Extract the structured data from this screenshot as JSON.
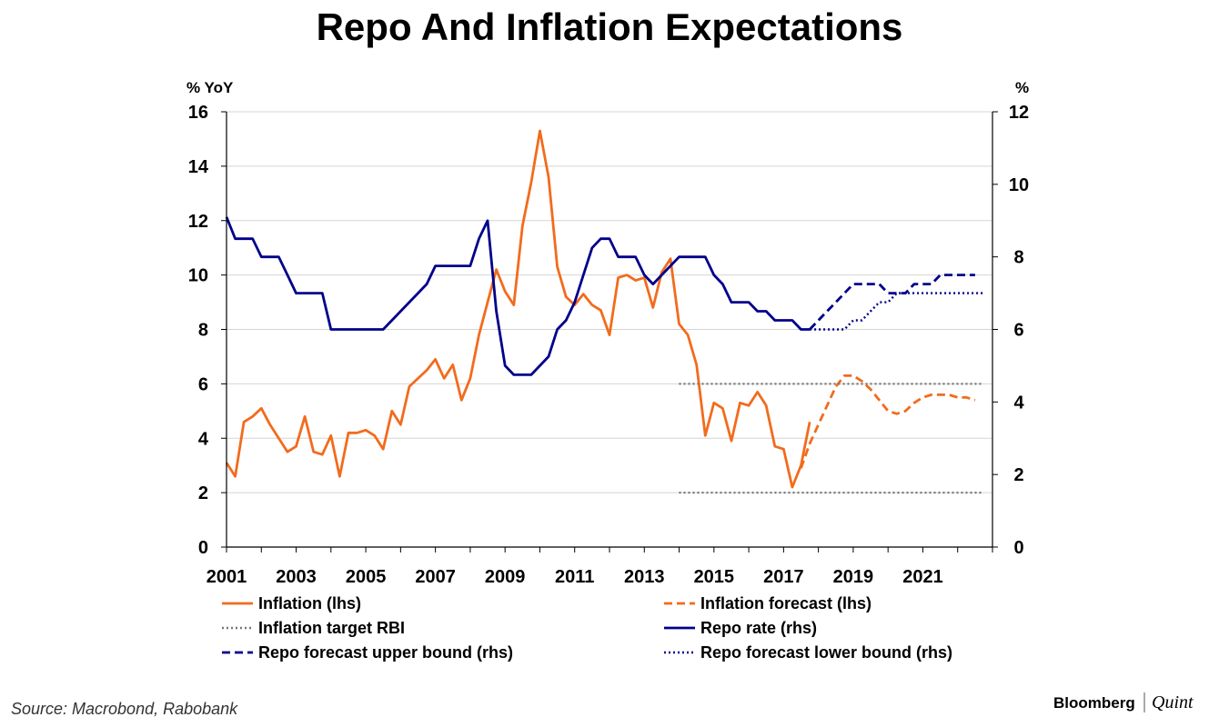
{
  "title": "Repo And Inflation Expectations",
  "source": "Source: Macrobond, Rabobank",
  "brand": {
    "name": "Bloomberg",
    "sub": "Quint"
  },
  "chart_data": {
    "type": "line",
    "title": "Repo And Inflation Expectations",
    "y_left": {
      "label": "% YoY",
      "range": [
        0,
        16
      ],
      "ticks": [
        0,
        2,
        4,
        6,
        8,
        10,
        12,
        14,
        16
      ]
    },
    "y_right": {
      "label": "%",
      "range": [
        0,
        12
      ],
      "ticks": [
        0,
        2,
        4,
        6,
        8,
        10,
        12
      ]
    },
    "x": {
      "range": [
        2001,
        2023
      ],
      "ticks": [
        2001,
        2003,
        2005,
        2007,
        2009,
        2011,
        2013,
        2015,
        2017,
        2019,
        2021
      ]
    },
    "grid": true,
    "legend_position": "bottom",
    "colors": {
      "inflation": "#f26b1d",
      "repo": "#00008b",
      "target": "#777777"
    },
    "series": [
      {
        "name": "Inflation (lhs)",
        "axis": "left",
        "style": "solid",
        "color": "#f26b1d",
        "points": [
          [
            2001.0,
            3.1
          ],
          [
            2001.25,
            2.6
          ],
          [
            2001.5,
            4.6
          ],
          [
            2001.75,
            4.8
          ],
          [
            2002.0,
            5.1
          ],
          [
            2002.25,
            4.5
          ],
          [
            2002.5,
            4.0
          ],
          [
            2002.75,
            3.5
          ],
          [
            2003.0,
            3.7
          ],
          [
            2003.25,
            4.8
          ],
          [
            2003.5,
            3.5
          ],
          [
            2003.75,
            3.4
          ],
          [
            2004.0,
            4.1
          ],
          [
            2004.25,
            2.6
          ],
          [
            2004.5,
            4.2
          ],
          [
            2004.75,
            4.2
          ],
          [
            2005.0,
            4.3
          ],
          [
            2005.25,
            4.1
          ],
          [
            2005.5,
            3.6
          ],
          [
            2005.75,
            5.0
          ],
          [
            2006.0,
            4.5
          ],
          [
            2006.25,
            5.9
          ],
          [
            2006.5,
            6.2
          ],
          [
            2006.75,
            6.5
          ],
          [
            2007.0,
            6.9
          ],
          [
            2007.25,
            6.2
          ],
          [
            2007.5,
            6.7
          ],
          [
            2007.75,
            5.4
          ],
          [
            2008.0,
            6.2
          ],
          [
            2008.25,
            7.8
          ],
          [
            2008.5,
            9.0
          ],
          [
            2008.75,
            10.2
          ],
          [
            2009.0,
            9.4
          ],
          [
            2009.25,
            8.9
          ],
          [
            2009.5,
            11.8
          ],
          [
            2009.75,
            13.4
          ],
          [
            2010.0,
            15.3
          ],
          [
            2010.25,
            13.6
          ],
          [
            2010.5,
            10.3
          ],
          [
            2010.75,
            9.2
          ],
          [
            2011.0,
            8.9
          ],
          [
            2011.25,
            9.3
          ],
          [
            2011.5,
            8.9
          ],
          [
            2011.75,
            8.7
          ],
          [
            2012.0,
            7.8
          ],
          [
            2012.25,
            9.9
          ],
          [
            2012.5,
            10.0
          ],
          [
            2012.75,
            9.8
          ],
          [
            2013.0,
            9.9
          ],
          [
            2013.25,
            8.8
          ],
          [
            2013.5,
            10.1
          ],
          [
            2013.75,
            10.6
          ],
          [
            2014.0,
            8.2
          ],
          [
            2014.25,
            7.8
          ],
          [
            2014.5,
            6.7
          ],
          [
            2014.75,
            4.1
          ],
          [
            2015.0,
            5.3
          ],
          [
            2015.25,
            5.1
          ],
          [
            2015.5,
            3.9
          ],
          [
            2015.75,
            5.3
          ],
          [
            2016.0,
            5.2
          ],
          [
            2016.25,
            5.7
          ],
          [
            2016.5,
            5.2
          ],
          [
            2016.75,
            3.7
          ],
          [
            2017.0,
            3.6
          ],
          [
            2017.25,
            2.2
          ],
          [
            2017.5,
            3.0
          ],
          [
            2017.75,
            4.6
          ]
        ]
      },
      {
        "name": "Inflation forecast (lhs)",
        "axis": "left",
        "style": "dashed",
        "color": "#f26b1d",
        "points": [
          [
            2017.5,
            2.9
          ],
          [
            2017.75,
            3.8
          ],
          [
            2018.0,
            4.5
          ],
          [
            2018.25,
            5.2
          ],
          [
            2018.5,
            5.9
          ],
          [
            2018.75,
            6.3
          ],
          [
            2019.0,
            6.3
          ],
          [
            2019.25,
            6.1
          ],
          [
            2019.5,
            5.8
          ],
          [
            2019.75,
            5.4
          ],
          [
            2020.0,
            5.0
          ],
          [
            2020.25,
            4.9
          ],
          [
            2020.5,
            5.0
          ],
          [
            2020.75,
            5.3
          ],
          [
            2021.0,
            5.5
          ],
          [
            2021.25,
            5.6
          ],
          [
            2021.5,
            5.6
          ],
          [
            2021.75,
            5.6
          ],
          [
            2022.0,
            5.5
          ],
          [
            2022.25,
            5.5
          ],
          [
            2022.5,
            5.4
          ]
        ]
      },
      {
        "name": "Inflation target RBI",
        "axis": "left",
        "style": "dotted",
        "color": "#777777",
        "lines": [
          {
            "points": [
              [
                2014.0,
                6.0
              ],
              [
                2022.75,
                6.0
              ]
            ]
          },
          {
            "points": [
              [
                2014.0,
                2.0
              ],
              [
                2022.75,
                2.0
              ]
            ]
          }
        ]
      },
      {
        "name": "Repo rate (rhs)",
        "axis": "right",
        "style": "solid",
        "color": "#00008b",
        "points": [
          [
            2001.0,
            9.1
          ],
          [
            2001.25,
            8.5
          ],
          [
            2001.75,
            8.5
          ],
          [
            2002.0,
            8.0
          ],
          [
            2002.5,
            8.0
          ],
          [
            2002.75,
            7.5
          ],
          [
            2003.0,
            7.0
          ],
          [
            2003.75,
            7.0
          ],
          [
            2004.0,
            6.0
          ],
          [
            2005.5,
            6.0
          ],
          [
            2006.0,
            6.5
          ],
          [
            2006.5,
            7.0
          ],
          [
            2006.75,
            7.25
          ],
          [
            2007.0,
            7.75
          ],
          [
            2007.75,
            7.75
          ],
          [
            2008.0,
            7.75
          ],
          [
            2008.25,
            8.5
          ],
          [
            2008.5,
            9.0
          ],
          [
            2008.75,
            6.5
          ],
          [
            2009.0,
            5.0
          ],
          [
            2009.25,
            4.75
          ],
          [
            2009.75,
            4.75
          ],
          [
            2010.0,
            5.0
          ],
          [
            2010.25,
            5.25
          ],
          [
            2010.5,
            6.0
          ],
          [
            2010.75,
            6.25
          ],
          [
            2011.0,
            6.75
          ],
          [
            2011.25,
            7.5
          ],
          [
            2011.5,
            8.25
          ],
          [
            2011.75,
            8.5
          ],
          [
            2012.0,
            8.5
          ],
          [
            2012.25,
            8.0
          ],
          [
            2012.75,
            8.0
          ],
          [
            2013.0,
            7.5
          ],
          [
            2013.25,
            7.25
          ],
          [
            2013.5,
            7.5
          ],
          [
            2013.75,
            7.75
          ],
          [
            2014.0,
            8.0
          ],
          [
            2014.75,
            8.0
          ],
          [
            2015.0,
            7.5
          ],
          [
            2015.25,
            7.25
          ],
          [
            2015.5,
            6.75
          ],
          [
            2016.0,
            6.75
          ],
          [
            2016.25,
            6.5
          ],
          [
            2016.5,
            6.5
          ],
          [
            2016.75,
            6.25
          ],
          [
            2017.25,
            6.25
          ],
          [
            2017.5,
            6.0
          ],
          [
            2017.75,
            6.0
          ]
        ]
      },
      {
        "name": "Repo forecast upper bound (rhs)",
        "axis": "right",
        "style": "dashed",
        "color": "#00008b",
        "points": [
          [
            2017.75,
            6.0
          ],
          [
            2018.0,
            6.25
          ],
          [
            2018.25,
            6.5
          ],
          [
            2018.5,
            6.75
          ],
          [
            2018.75,
            7.0
          ],
          [
            2019.0,
            7.25
          ],
          [
            2019.5,
            7.25
          ],
          [
            2019.75,
            7.25
          ],
          [
            2020.0,
            7.0
          ],
          [
            2020.5,
            7.0
          ],
          [
            2020.75,
            7.25
          ],
          [
            2021.25,
            7.25
          ],
          [
            2021.5,
            7.5
          ],
          [
            2022.5,
            7.5
          ]
        ]
      },
      {
        "name": "Repo forecast lower bound (rhs)",
        "axis": "right",
        "style": "dotted",
        "color": "#00008b",
        "points": [
          [
            2017.75,
            6.0
          ],
          [
            2018.75,
            6.0
          ],
          [
            2019.0,
            6.25
          ],
          [
            2019.25,
            6.25
          ],
          [
            2019.5,
            6.5
          ],
          [
            2019.75,
            6.75
          ],
          [
            2020.0,
            6.75
          ],
          [
            2020.25,
            7.0
          ],
          [
            2022.75,
            7.0
          ]
        ]
      }
    ],
    "legend": [
      {
        "label": "Inflation (lhs)",
        "color": "#f26b1d",
        "style": "solid"
      },
      {
        "label": "Inflation forecast (lhs)",
        "color": "#f26b1d",
        "style": "dashed"
      },
      {
        "label": "Inflation target RBI",
        "color": "#777777",
        "style": "dotted"
      },
      {
        "label": "Repo rate (rhs)",
        "color": "#00008b",
        "style": "solid"
      },
      {
        "label": "Repo forecast upper bound (rhs)",
        "color": "#00008b",
        "style": "dashed"
      },
      {
        "label": "Repo forecast lower bound (rhs)",
        "color": "#00008b",
        "style": "dotted"
      }
    ]
  }
}
